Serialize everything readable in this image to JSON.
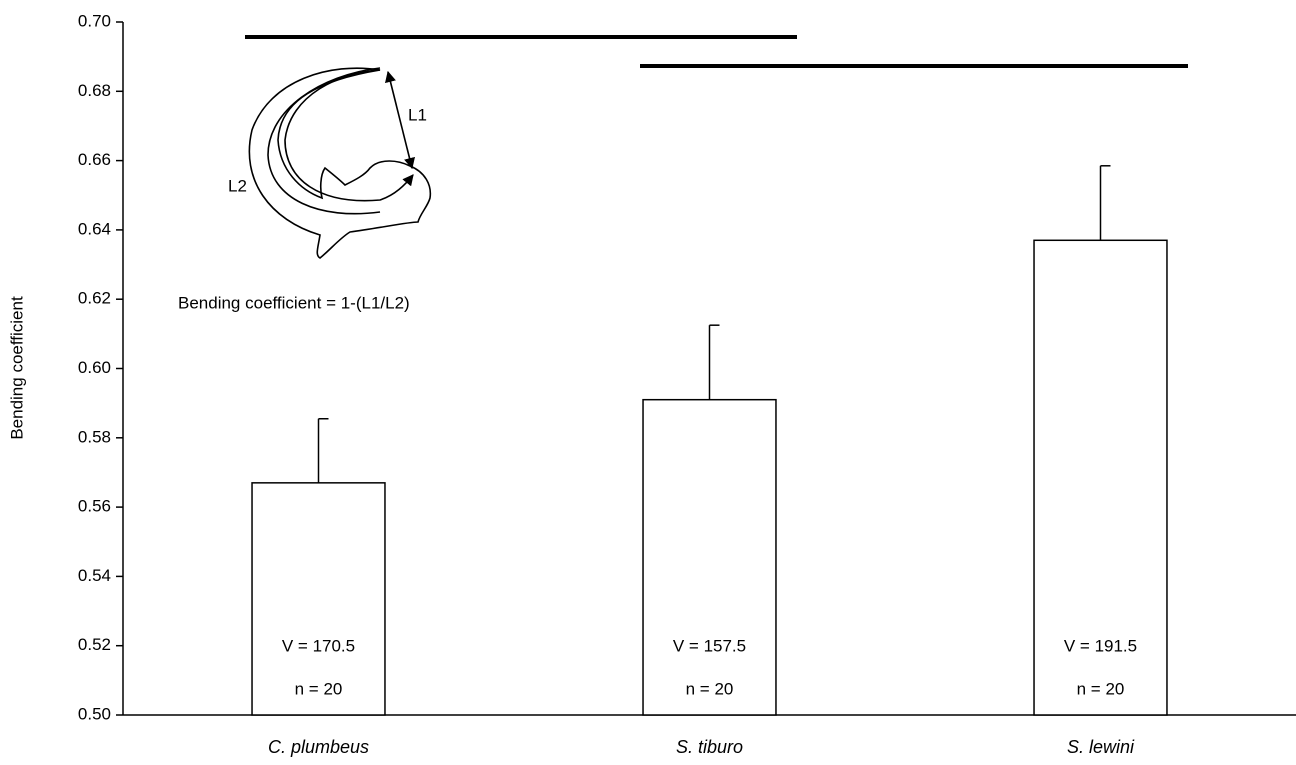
{
  "chart_data": {
    "type": "bar",
    "y_label": "Bending coefficient",
    "categories": [
      "C. plumbeus",
      "S. tiburo",
      "S. lewini"
    ],
    "values": [
      0.567,
      0.591,
      0.637
    ],
    "errors": [
      0.0185,
      0.0215,
      0.0215
    ],
    "bar_annotations": [
      [
        "V = 170.5",
        "n = 20"
      ],
      [
        "V = 157.5",
        "n = 20"
      ],
      [
        "V = 191.5",
        "n = 20"
      ]
    ],
    "color": "#ffffff",
    "ylim": [
      0.5,
      0.7
    ],
    "yticks": [
      {
        "value": 0.5,
        "label": "0.50"
      },
      {
        "value": 0.52,
        "label": "0.52"
      },
      {
        "value": 0.54,
        "label": "0.54"
      },
      {
        "value": 0.56,
        "label": "0.56"
      },
      {
        "value": 0.58,
        "label": "0.58"
      },
      {
        "value": 0.6,
        "label": "0.60"
      },
      {
        "value": 0.62,
        "label": "0.62"
      },
      {
        "value": 0.64,
        "label": "0.64"
      },
      {
        "value": 0.66,
        "label": "0.66"
      },
      {
        "value": 0.68,
        "label": "0.68"
      },
      {
        "value": 0.7,
        "label": "0.70"
      }
    ],
    "inset": {
      "L1": "L1",
      "L2": "L2",
      "formula": "Bending coefficient = 1-(L1/L2)"
    }
  }
}
